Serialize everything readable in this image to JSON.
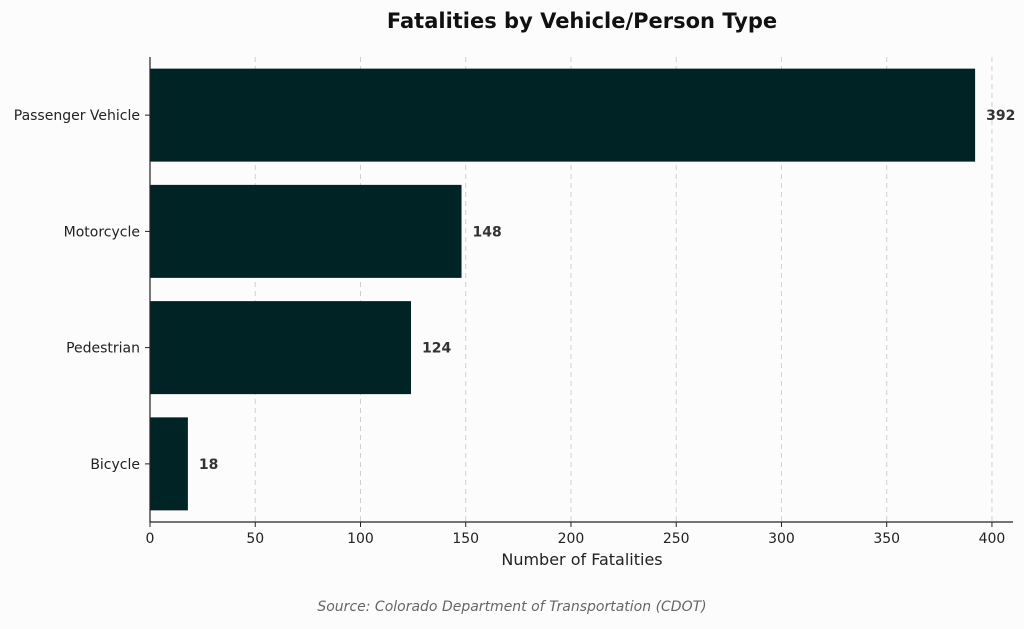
{
  "chart_data": {
    "type": "bar",
    "orientation": "horizontal",
    "title": "Fatalities by Vehicle/Person Type",
    "xlabel": "Number of Fatalities",
    "ylabel": "",
    "categories": [
      "Passenger Vehicle",
      "Motorcycle",
      "Pedestrian",
      "Bicycle"
    ],
    "values": [
      392,
      148,
      124,
      18
    ],
    "xlim": [
      0,
      410
    ],
    "xticks": [
      0,
      50,
      100,
      150,
      200,
      250,
      300,
      350,
      400
    ],
    "grid": "vertical-dashed",
    "bar_color": "#002326",
    "source": "Source: Colorado Department of Transportation (CDOT)"
  }
}
